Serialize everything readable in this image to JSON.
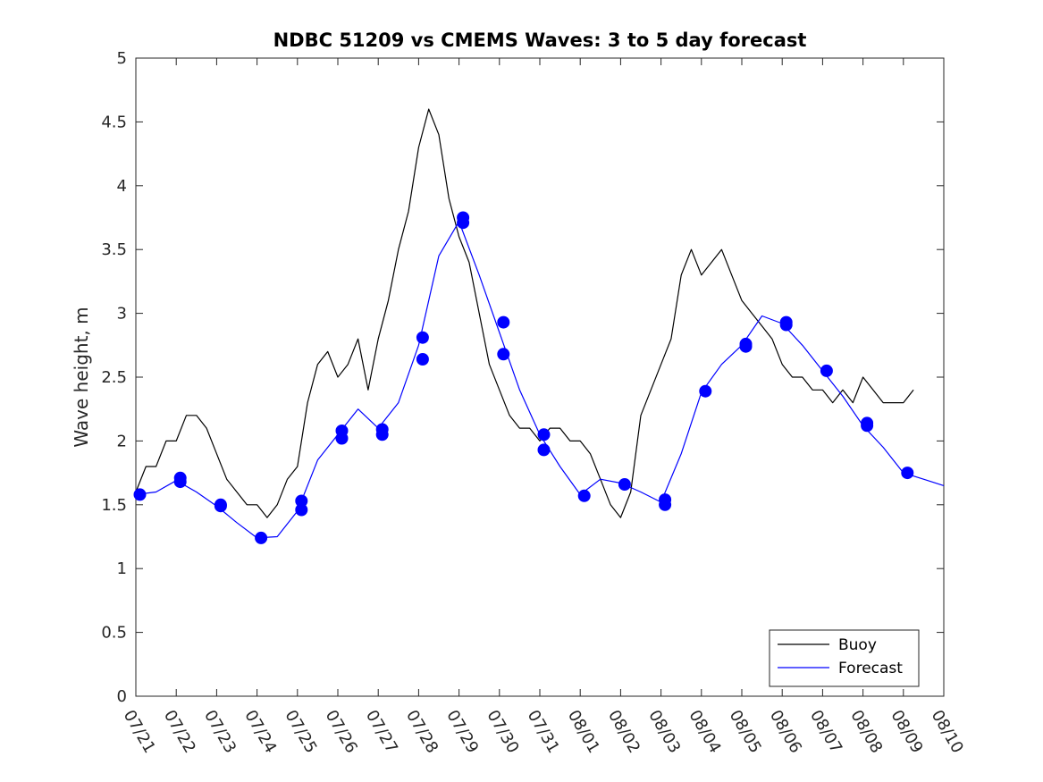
{
  "chart_data": {
    "type": "line",
    "title": "NDBC 51209 vs CMEMS Waves: 3 to 5 day forecast",
    "xlabel": "",
    "ylabel": "Wave height, m",
    "ylim": [
      0,
      5
    ],
    "yticks": [
      0,
      0.5,
      1,
      1.5,
      2,
      2.5,
      3,
      3.5,
      4,
      4.5,
      5
    ],
    "ytick_labels": [
      "0",
      "0.5",
      "1",
      "1.5",
      "2",
      "2.5",
      "3",
      "3.5",
      "4",
      "4.5",
      "5"
    ],
    "xlim": [
      "07/21",
      "08/10"
    ],
    "xtick_labels": [
      "07/21",
      "07/22",
      "07/23",
      "07/24",
      "07/25",
      "07/26",
      "07/27",
      "07/28",
      "07/29",
      "07/30",
      "07/31",
      "08/01",
      "08/02",
      "08/03",
      "08/04",
      "08/05",
      "08/06",
      "08/07",
      "08/08",
      "08/09",
      "08/10"
    ],
    "grid": false,
    "legend": {
      "location": "bottom-right",
      "entries": [
        "Buoy",
        "Forecast"
      ]
    },
    "colors": {
      "buoy": "#000000",
      "forecast": "#0000ff"
    },
    "series": [
      {
        "name": "Buoy",
        "x": [
          0,
          0.25,
          0.5,
          0.75,
          1,
          1.25,
          1.5,
          1.75,
          2,
          2.25,
          2.5,
          2.75,
          3,
          3.25,
          3.5,
          3.75,
          4,
          4.25,
          4.5,
          4.75,
          5,
          5.25,
          5.5,
          5.75,
          6,
          6.25,
          6.5,
          6.75,
          7,
          7.25,
          7.5,
          7.75,
          8,
          8.25,
          8.5,
          8.75,
          9,
          9.25,
          9.5,
          9.75,
          10,
          10.25,
          10.5,
          10.75,
          11,
          11.25,
          11.5,
          11.75,
          12,
          12.25,
          12.5,
          12.75,
          13,
          13.25,
          13.5,
          13.75,
          14,
          14.25,
          14.5,
          14.75,
          15,
          15.25,
          15.5,
          15.75,
          16,
          16.25,
          16.5,
          16.75,
          17,
          17.25,
          17.5,
          17.75,
          18,
          18.25,
          18.5,
          18.75,
          19,
          19.25
        ],
        "values": [
          1.6,
          1.8,
          1.8,
          2.0,
          2.0,
          2.2,
          2.2,
          2.1,
          1.9,
          1.7,
          1.6,
          1.5,
          1.5,
          1.4,
          1.5,
          1.7,
          1.8,
          2.3,
          2.6,
          2.7,
          2.5,
          2.6,
          2.8,
          2.4,
          2.8,
          3.1,
          3.5,
          3.8,
          4.3,
          4.6,
          4.4,
          3.9,
          3.6,
          3.4,
          3.0,
          2.6,
          2.4,
          2.2,
          2.1,
          2.1,
          2.0,
          2.1,
          2.1,
          2.0,
          2.0,
          1.9,
          1.7,
          1.5,
          1.4,
          1.6,
          2.2,
          2.4,
          2.6,
          2.8,
          3.3,
          3.5,
          3.3,
          3.4,
          3.5,
          3.3,
          3.1,
          3.0,
          2.9,
          2.8,
          2.6,
          2.5,
          2.5,
          2.4,
          2.4,
          2.3,
          2.4,
          2.3,
          2.5,
          2.4,
          2.3,
          2.3,
          2.3,
          2.4
        ]
      },
      {
        "name": "Forecast",
        "x": [
          0,
          0.5,
          1,
          1.5,
          2,
          2.5,
          3,
          3.5,
          4,
          4.5,
          5,
          5.5,
          6,
          6.5,
          7,
          7.5,
          8,
          8.5,
          9,
          9.5,
          10,
          10.5,
          11,
          11.5,
          12,
          12.5,
          13,
          13.5,
          14,
          14.5,
          15,
          15.5,
          16,
          16.5,
          17,
          17.5,
          18,
          18.5,
          19,
          19.5,
          20
        ],
        "values": [
          1.58,
          1.6,
          1.69,
          1.6,
          1.49,
          1.36,
          1.24,
          1.25,
          1.45,
          1.85,
          2.05,
          2.25,
          2.1,
          2.3,
          2.75,
          3.45,
          3.72,
          3.3,
          2.85,
          2.4,
          2.05,
          1.8,
          1.58,
          1.7,
          1.67,
          1.6,
          1.52,
          1.9,
          2.38,
          2.6,
          2.75,
          2.98,
          2.92,
          2.75,
          2.55,
          2.35,
          2.12,
          1.95,
          1.75,
          1.7,
          1.65
        ]
      }
    ],
    "markers": {
      "x": [
        0.1,
        1.1,
        1.1,
        2.1,
        2.1,
        3.1,
        4.1,
        4.1,
        5.1,
        5.1,
        6.1,
        6.1,
        7.1,
        7.1,
        8.1,
        8.1,
        9.1,
        9.1,
        10.1,
        10.1,
        11.1,
        12.1,
        13.1,
        13.1,
        14.1,
        15.1,
        15.1,
        16.1,
        16.1,
        17.1,
        18.1,
        18.1,
        19.1
      ],
      "values": [
        1.58,
        1.68,
        1.71,
        1.49,
        1.5,
        1.24,
        1.46,
        1.53,
        2.02,
        2.08,
        2.05,
        2.09,
        2.64,
        2.81,
        3.71,
        3.75,
        2.68,
        2.93,
        1.93,
        2.05,
        1.57,
        1.66,
        1.5,
        1.54,
        2.39,
        2.74,
        2.76,
        2.91,
        2.93,
        2.55,
        2.12,
        2.14,
        1.75
      ]
    }
  }
}
